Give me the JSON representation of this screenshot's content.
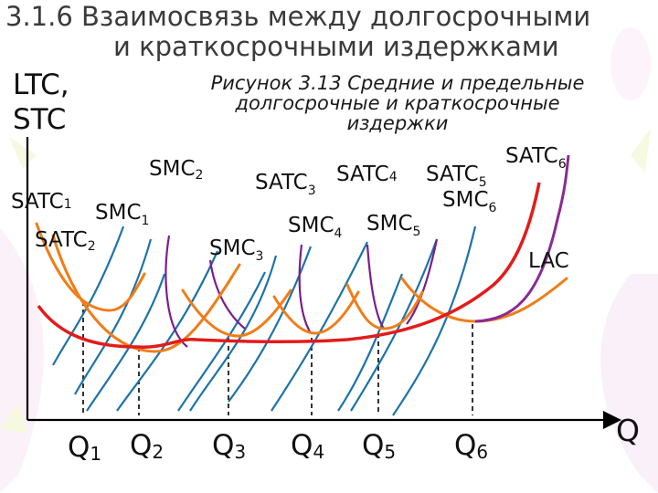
{
  "slide": {
    "title_line1": "3.1.6 Взаимосвязь между долгосрочными",
    "title_line2": "и краткосрочными издержками",
    "caption_line1": "Рисунок 3.13 Средние и предельные",
    "caption_line2": "долгосрочные и краткосрочные",
    "caption_line3": "издержки",
    "y_axis_label_line1": "LTC,",
    "y_axis_label_line2": "STC",
    "x_axis_label": "Q"
  },
  "colors": {
    "satc": "#f07d18",
    "smc_blue": "#1d73a8",
    "smc_purple": "#7a1e8e",
    "lac": "#e31b1b",
    "satc_end": "#8a2a95",
    "axis": "#000000",
    "guide": "#000000"
  },
  "curve_labels": [
    {
      "base": "SATC",
      "sub": "1"
    },
    {
      "base": "SMC",
      "sub": "1"
    },
    {
      "base": "SATC",
      "sub": "2"
    },
    {
      "base": "SMC",
      "sub": "2"
    },
    {
      "base": "SMC",
      "sub": "3"
    },
    {
      "base": "SATC",
      "sub": "3"
    },
    {
      "base": "SATC",
      "sub": "4"
    },
    {
      "base": "SATC",
      "sub": "5"
    },
    {
      "base": "SATC",
      "sub": "6"
    },
    {
      "base": "SMC",
      "sub": "4"
    },
    {
      "base": "SMC",
      "sub": "5"
    },
    {
      "base": "SMC",
      "sub": "6"
    },
    {
      "base": "LAC",
      "sub": ""
    }
  ],
  "q_labels": [
    {
      "base": "Q",
      "sub": "1"
    },
    {
      "base": "Q",
      "sub": "2"
    },
    {
      "base": "Q",
      "sub": "3"
    },
    {
      "base": "Q",
      "sub": "4"
    },
    {
      "base": "Q",
      "sub": "5"
    },
    {
      "base": "Q",
      "sub": "6"
    }
  ]
}
